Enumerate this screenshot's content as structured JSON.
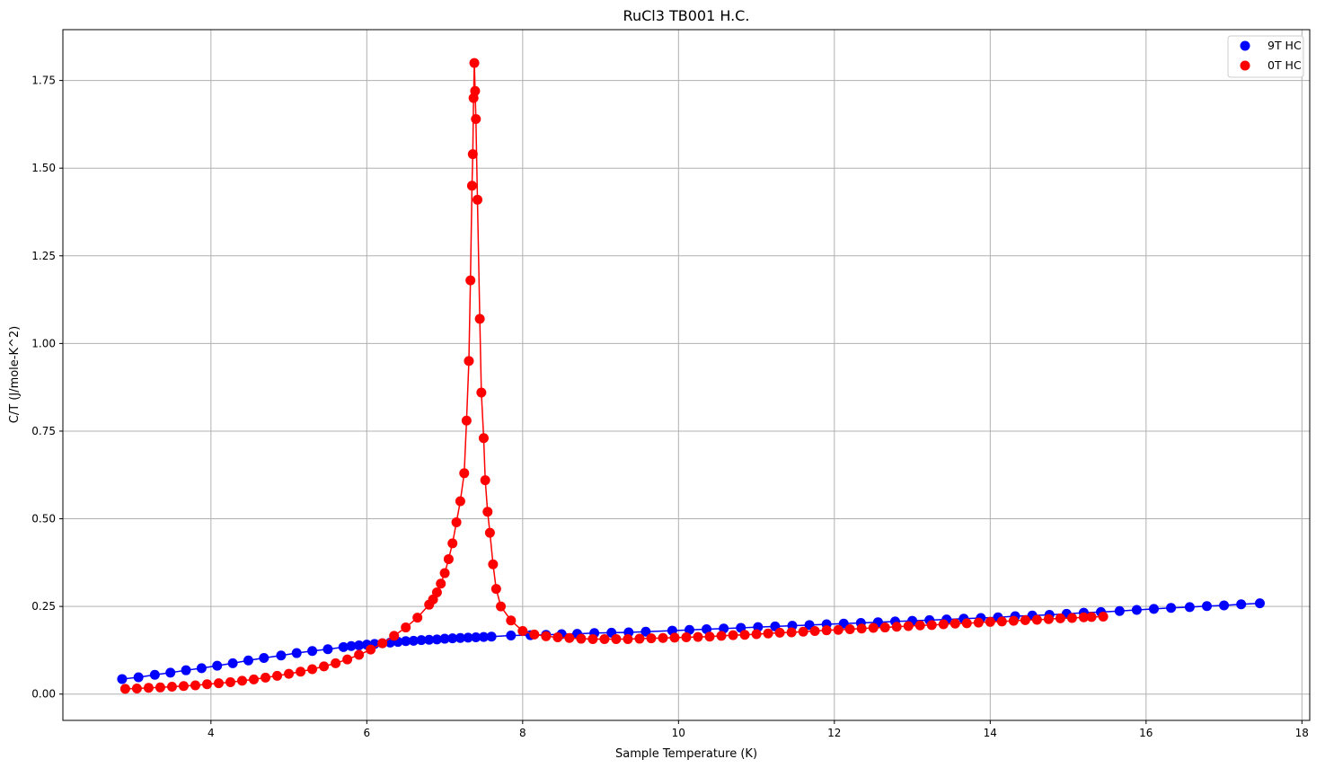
{
  "chart_data": {
    "type": "scatter",
    "title": "RuCl3 TB001 H.C.",
    "xlabel": "Sample Temperature (K)",
    "ylabel": "C/T (J/mole-K^2)",
    "xlim": [
      2.1,
      18.1
    ],
    "ylim": [
      -0.075,
      1.895
    ],
    "xticks": [
      4,
      6,
      8,
      10,
      12,
      14,
      16,
      18
    ],
    "yticks": [
      0.0,
      0.25,
      0.5,
      0.75,
      1.0,
      1.25,
      1.5,
      1.75
    ],
    "xtick_labels": [
      "4",
      "6",
      "8",
      "10",
      "12",
      "14",
      "16",
      "18"
    ],
    "ytick_labels": [
      "0.00",
      "0.25",
      "0.50",
      "0.75",
      "1.00",
      "1.25",
      "1.50",
      "1.75"
    ],
    "grid": true,
    "legend_position": "top-right",
    "series": [
      {
        "name": "9T HC",
        "color": "#0000ff",
        "x": [
          2.86,
          3.07,
          3.28,
          3.48,
          3.68,
          3.88,
          4.08,
          4.28,
          4.48,
          4.68,
          4.9,
          5.1,
          5.3,
          5.5,
          5.7,
          5.8,
          5.9,
          6.0,
          6.1,
          6.2,
          6.3,
          6.4,
          6.5,
          6.6,
          6.7,
          6.8,
          6.9,
          7.0,
          7.1,
          7.2,
          7.3,
          7.4,
          7.5,
          7.6,
          7.85,
          8.1,
          8.3,
          8.5,
          8.7,
          8.92,
          9.14,
          9.36,
          9.58,
          9.92,
          10.14,
          10.36,
          10.58,
          10.8,
          11.02,
          11.24,
          11.46,
          11.68,
          11.9,
          12.12,
          12.34,
          12.56,
          12.78,
          13.0,
          13.22,
          13.44,
          13.66,
          13.88,
          14.1,
          14.32,
          14.54,
          14.76,
          14.98,
          15.2,
          15.42,
          15.66,
          15.88,
          16.1,
          16.32,
          16.56,
          16.78,
          17.0,
          17.22,
          17.46
        ],
        "y": [
          0.043,
          0.048,
          0.055,
          0.061,
          0.068,
          0.074,
          0.081,
          0.088,
          0.096,
          0.103,
          0.11,
          0.117,
          0.123,
          0.128,
          0.134,
          0.137,
          0.139,
          0.141,
          0.143,
          0.145,
          0.147,
          0.149,
          0.151,
          0.152,
          0.154,
          0.155,
          0.156,
          0.158,
          0.159,
          0.16,
          0.161,
          0.162,
          0.163,
          0.164,
          0.167,
          0.168,
          0.169,
          0.171,
          0.172,
          0.174,
          0.175,
          0.176,
          0.178,
          0.181,
          0.183,
          0.185,
          0.187,
          0.189,
          0.191,
          0.193,
          0.195,
          0.197,
          0.199,
          0.201,
          0.203,
          0.205,
          0.207,
          0.209,
          0.211,
          0.213,
          0.215,
          0.217,
          0.219,
          0.222,
          0.224,
          0.226,
          0.229,
          0.232,
          0.234,
          0.237,
          0.24,
          0.243,
          0.246,
          0.248,
          0.251,
          0.253,
          0.256,
          0.259
        ]
      },
      {
        "name": "0T HC",
        "color": "#ff0000",
        "x": [
          2.9,
          3.05,
          3.2,
          3.35,
          3.5,
          3.65,
          3.8,
          3.95,
          4.1,
          4.25,
          4.4,
          4.55,
          4.7,
          4.85,
          5.0,
          5.15,
          5.3,
          5.45,
          5.6,
          5.75,
          5.9,
          6.05,
          6.2,
          6.35,
          6.5,
          6.65,
          6.8,
          6.85,
          6.9,
          6.95,
          7.0,
          7.05,
          7.1,
          7.15,
          7.2,
          7.25,
          7.28,
          7.31,
          7.33,
          7.35,
          7.36,
          7.37,
          7.38,
          7.39,
          7.4,
          7.42,
          7.45,
          7.47,
          7.5,
          7.52,
          7.55,
          7.58,
          7.62,
          7.66,
          7.72,
          7.85,
          8.0,
          8.15,
          8.3,
          8.45,
          8.6,
          8.75,
          8.9,
          9.05,
          9.2,
          9.35,
          9.5,
          9.65,
          9.8,
          9.95,
          10.1,
          10.25,
          10.4,
          10.55,
          10.7,
          10.85,
          11.0,
          11.15,
          11.3,
          11.45,
          11.6,
          11.75,
          11.9,
          12.05,
          12.2,
          12.35,
          12.5,
          12.65,
          12.8,
          12.95,
          13.1,
          13.25,
          13.4,
          13.55,
          13.7,
          13.85,
          14.0,
          14.15,
          14.3,
          14.45,
          14.6,
          14.75,
          14.9,
          15.05,
          15.2,
          15.3,
          15.45
        ],
        "y": [
          0.015,
          0.016,
          0.018,
          0.019,
          0.021,
          0.023,
          0.025,
          0.028,
          0.031,
          0.034,
          0.038,
          0.042,
          0.047,
          0.052,
          0.058,
          0.064,
          0.071,
          0.079,
          0.088,
          0.099,
          0.112,
          0.127,
          0.145,
          0.166,
          0.19,
          0.218,
          0.255,
          0.27,
          0.29,
          0.315,
          0.345,
          0.385,
          0.43,
          0.49,
          0.55,
          0.63,
          0.78,
          0.95,
          1.18,
          1.45,
          1.54,
          1.7,
          1.8,
          1.72,
          1.64,
          1.41,
          1.07,
          0.86,
          0.73,
          0.61,
          0.52,
          0.46,
          0.37,
          0.3,
          0.25,
          0.21,
          0.18,
          0.17,
          0.165,
          0.162,
          0.16,
          0.158,
          0.157,
          0.157,
          0.157,
          0.157,
          0.158,
          0.159,
          0.16,
          0.161,
          0.162,
          0.163,
          0.164,
          0.166,
          0.168,
          0.169,
          0.171,
          0.173,
          0.175,
          0.176,
          0.178,
          0.18,
          0.182,
          0.183,
          0.185,
          0.187,
          0.189,
          0.19,
          0.192,
          0.194,
          0.196,
          0.197,
          0.199,
          0.201,
          0.202,
          0.204,
          0.206,
          0.207,
          0.209,
          0.211,
          0.212,
          0.214,
          0.216,
          0.217,
          0.219,
          0.22,
          0.221
        ]
      }
    ]
  }
}
